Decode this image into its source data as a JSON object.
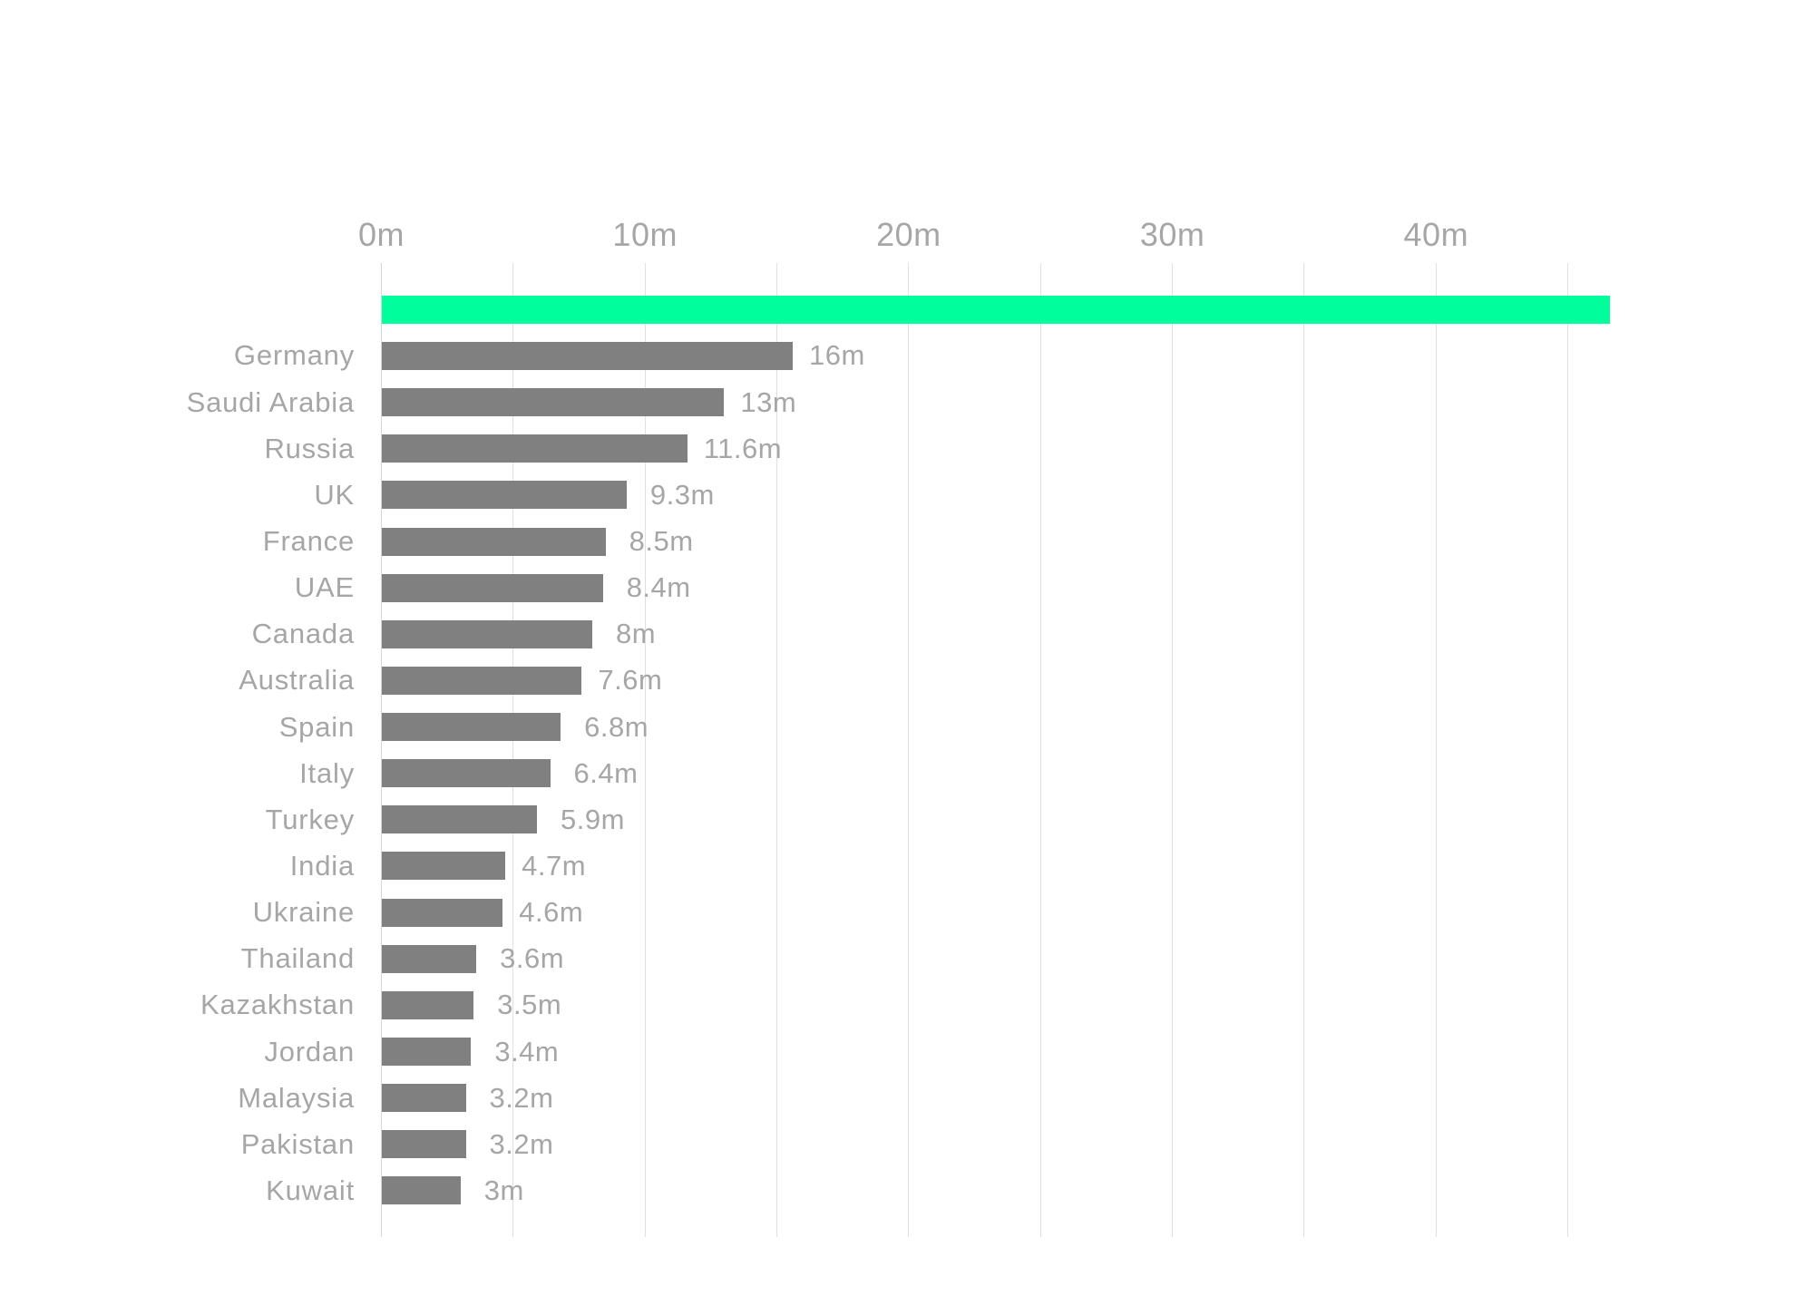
{
  "chart_data": {
    "type": "bar",
    "orientation": "horizontal",
    "title": "",
    "xlabel": "",
    "ylabel": "",
    "unit_suffix": "m",
    "axis": {
      "ticks": [
        {
          "value": 0,
          "label": "0m"
        },
        {
          "value": 10,
          "label": "10m"
        },
        {
          "value": 20,
          "label": "20m"
        },
        {
          "value": 30,
          "label": "30m"
        },
        {
          "value": 40,
          "label": "40m"
        }
      ],
      "gridline_step": 5,
      "gridline_values": [
        0,
        5,
        10,
        15,
        20,
        25,
        30,
        35,
        40,
        45
      ],
      "range": [
        0,
        46.6
      ],
      "grid": true,
      "tick_position": "top"
    },
    "rows": [
      {
        "label": "",
        "value": 46.6,
        "value_label": "",
        "highlight": true
      },
      {
        "label": "Germany",
        "value": 15.6,
        "value_label": "16m",
        "highlight": false
      },
      {
        "label": "Saudi Arabia",
        "value": 13.0,
        "value_label": "13m",
        "highlight": false
      },
      {
        "label": "Russia",
        "value": 11.6,
        "value_label": "11.6m",
        "highlight": false
      },
      {
        "label": "UK",
        "value": 9.3,
        "value_label": "9.3m",
        "highlight": false
      },
      {
        "label": "France",
        "value": 8.5,
        "value_label": "8.5m",
        "highlight": false
      },
      {
        "label": "UAE",
        "value": 8.4,
        "value_label": "8.4m",
        "highlight": false
      },
      {
        "label": "Canada",
        "value": 8.0,
        "value_label": "8m",
        "highlight": false
      },
      {
        "label": "Australia",
        "value": 7.6,
        "value_label": "7.6m",
        "highlight": false
      },
      {
        "label": "Spain",
        "value": 6.8,
        "value_label": "6.8m",
        "highlight": false
      },
      {
        "label": "Italy",
        "value": 6.4,
        "value_label": "6.4m",
        "highlight": false
      },
      {
        "label": "Turkey",
        "value": 5.9,
        "value_label": "5.9m",
        "highlight": false
      },
      {
        "label": "India",
        "value": 4.7,
        "value_label": "4.7m",
        "highlight": false
      },
      {
        "label": "Ukraine",
        "value": 4.6,
        "value_label": "4.6m",
        "highlight": false
      },
      {
        "label": "Thailand",
        "value": 3.6,
        "value_label": "3.6m",
        "highlight": false
      },
      {
        "label": "Kazakhstan",
        "value": 3.5,
        "value_label": "3.5m",
        "highlight": false
      },
      {
        "label": "Jordan",
        "value": 3.4,
        "value_label": "3.4m",
        "highlight": false
      },
      {
        "label": "Malaysia",
        "value": 3.2,
        "value_label": "3.2m",
        "highlight": false
      },
      {
        "label": "Pakistan",
        "value": 3.2,
        "value_label": "3.2m",
        "highlight": false
      },
      {
        "label": "Kuwait",
        "value": 3.0,
        "value_label": "3m",
        "highlight": false
      }
    ],
    "colors": {
      "highlight_bar": "#00FF9C",
      "bar": "#808080",
      "text": "#A6A6A6",
      "gridline": "#E0E0E0",
      "axis_line": "#D6D6D6",
      "background": "#FFFFFF"
    },
    "legend": {
      "show": false
    }
  }
}
